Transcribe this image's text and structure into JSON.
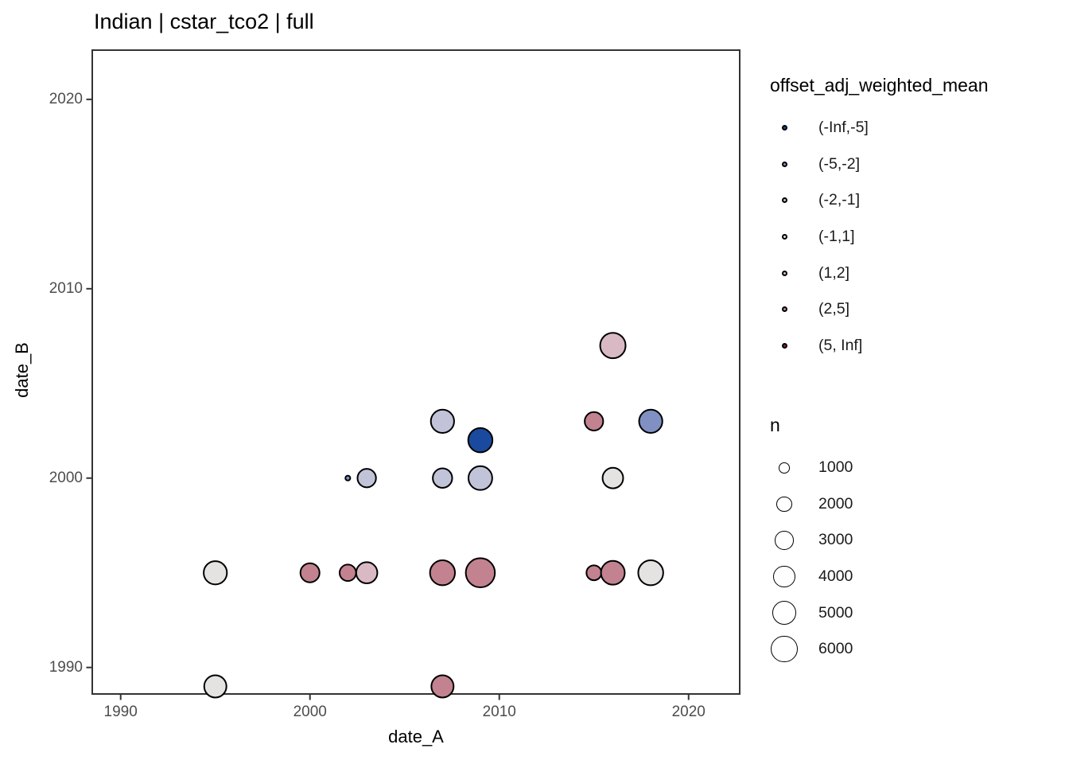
{
  "title": "Indian | cstar_tco2 | full",
  "chart_data": {
    "type": "scatter",
    "title": "Indian | cstar_tco2 | full",
    "xlabel": "date_A",
    "ylabel": "date_B",
    "x_ticks": [
      "1990",
      "2000",
      "2010",
      "2020"
    ],
    "y_ticks": [
      "2020",
      "2010",
      "2000",
      "1990"
    ],
    "x_tick_values": [
      1990,
      2000,
      2010,
      2020
    ],
    "y_tick_values": [
      2020,
      2010,
      2000,
      1990
    ],
    "x_domain": [
      1988.5,
      2022.7
    ],
    "y_domain": [
      1988.6,
      2022.6
    ],
    "grid": "off",
    "legend_position": "right",
    "size_scale": {
      "n_ref": 6000,
      "r_ref": 16.7
    },
    "points": [
      {
        "date_A": 1995,
        "date_B": 1989,
        "bin": "(-1,1]",
        "n": 4200
      },
      {
        "date_A": 2007,
        "date_B": 1989,
        "bin": "(2,5]",
        "n": 4200
      },
      {
        "date_A": 1995,
        "date_B": 1995,
        "bin": "(-1,1]",
        "n": 4600
      },
      {
        "date_A": 2000,
        "date_B": 1995,
        "bin": "(2,5]",
        "n": 3100
      },
      {
        "date_A": 2002,
        "date_B": 1995,
        "bin": "(2,5]",
        "n": 2300
      },
      {
        "date_A": 2003,
        "date_B": 1995,
        "bin": "(1,2]",
        "n": 3800
      },
      {
        "date_A": 2007,
        "date_B": 1995,
        "bin": "(2,5]",
        "n": 5300
      },
      {
        "date_A": 2009,
        "date_B": 1995,
        "bin": "(2,5]",
        "n": 7200
      },
      {
        "date_A": 2015,
        "date_B": 1995,
        "bin": "(2,5]",
        "n": 1900
      },
      {
        "date_A": 2016,
        "date_B": 1995,
        "bin": "(2,5]",
        "n": 4800
      },
      {
        "date_A": 2018,
        "date_B": 1995,
        "bin": "(-1,1]",
        "n": 5300
      },
      {
        "date_A": 2002,
        "date_B": 2000,
        "bin": "(-5,-2]",
        "n": 200
      },
      {
        "date_A": 2003,
        "date_B": 2000,
        "bin": "(-2,-1]",
        "n": 2900
      },
      {
        "date_A": 2007,
        "date_B": 2000,
        "bin": "(-2,-1]",
        "n": 3200
      },
      {
        "date_A": 2009,
        "date_B": 2000,
        "bin": "(-2,-1]",
        "n": 4800
      },
      {
        "date_A": 2016,
        "date_B": 2000,
        "bin": "(-1,1]",
        "n": 3600
      },
      {
        "date_A": 2009,
        "date_B": 2002,
        "bin": "(-Inf,-5]",
        "n": 5000
      },
      {
        "date_A": 2007,
        "date_B": 2003,
        "bin": "(-2,-1]",
        "n": 4600
      },
      {
        "date_A": 2015,
        "date_B": 2003,
        "bin": "(2,5]",
        "n": 2900
      },
      {
        "date_A": 2018,
        "date_B": 2003,
        "bin": "(-5,-2]",
        "n": 4600
      },
      {
        "date_A": 2016,
        "date_B": 2007,
        "bin": "(1,2]",
        "n": 5500
      }
    ]
  },
  "legend_color": {
    "title": "offset_adj_weighted_mean",
    "items": [
      {
        "label": "(-Inf,-5]",
        "color": "#1A4A9E"
      },
      {
        "label": "(-5,-2]",
        "color": "#8090C3"
      },
      {
        "label": "(-2,-1]",
        "color": "#C1C4D9"
      },
      {
        "label": "(-1,1]",
        "color": "#E5E3E2"
      },
      {
        "label": "(1,2]",
        "color": "#D9BAC4"
      },
      {
        "label": "(2,5]",
        "color": "#C2828F"
      },
      {
        "label": "(5, Inf]",
        "color": "#8C1E48"
      }
    ]
  },
  "legend_size": {
    "title": "n",
    "items": [
      "1000",
      "2000",
      "3000",
      "4000",
      "5000",
      "6000"
    ]
  },
  "colors": {
    "panel_border": "#333333",
    "tick_mark": "#333333",
    "tick_text": "#4d4d4d",
    "point_stroke": "#000000"
  }
}
